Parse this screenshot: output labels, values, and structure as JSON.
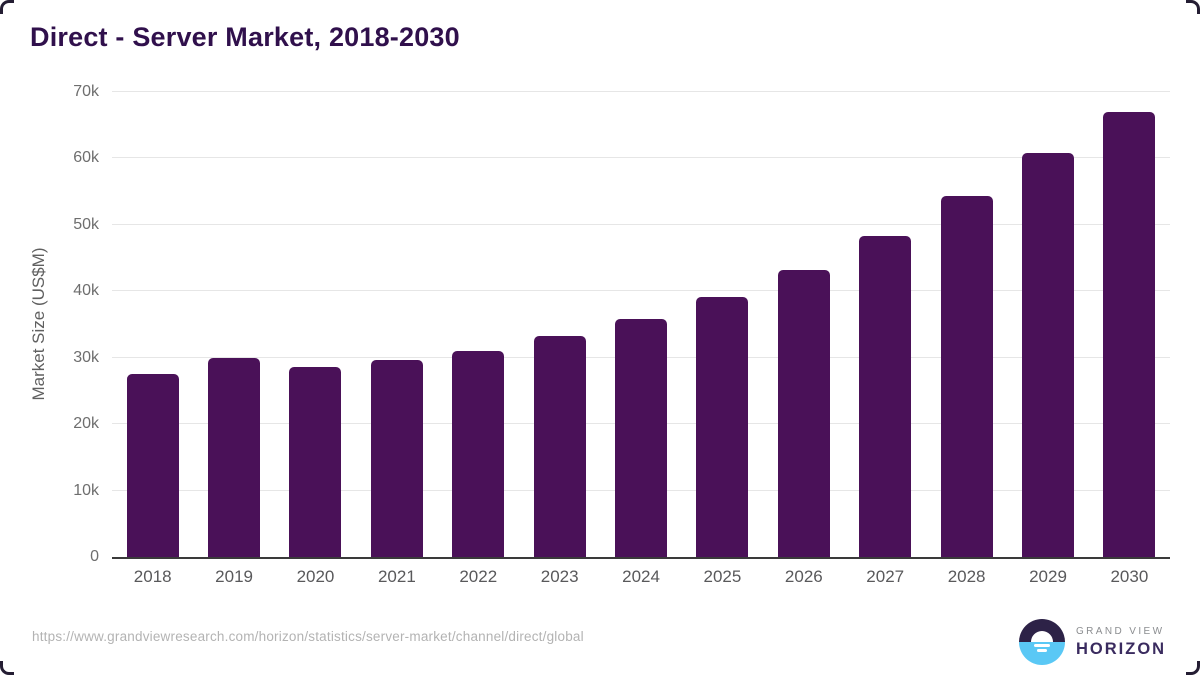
{
  "header": {
    "title": "Direct - Server Market, 2018-2030"
  },
  "chart_data": {
    "type": "bar",
    "title": "Direct - Server Market, 2018-2030",
    "categories": [
      "2018",
      "2019",
      "2020",
      "2021",
      "2022",
      "2023",
      "2024",
      "2025",
      "2026",
      "2027",
      "2028",
      "2029",
      "2030"
    ],
    "values": [
      27600,
      29950,
      28550,
      29600,
      31050,
      33250,
      35800,
      39100,
      43200,
      48400,
      54300,
      60800,
      67000
    ],
    "xlabel": "",
    "ylabel": "Market Size (US$M)",
    "ylim": [
      0,
      70000
    ],
    "yticks": [
      {
        "value": 0,
        "label": "0"
      },
      {
        "value": 10000,
        "label": "10k"
      },
      {
        "value": 20000,
        "label": "20k"
      },
      {
        "value": 30000,
        "label": "30k"
      },
      {
        "value": 40000,
        "label": "40k"
      },
      {
        "value": 50000,
        "label": "50k"
      },
      {
        "value": 60000,
        "label": "60k"
      },
      {
        "value": 70000,
        "label": "70k"
      }
    ],
    "grid": true,
    "legend_position": "none",
    "bar_color": "#4a1158"
  },
  "footer": {
    "source_url": "https://www.grandviewresearch.com/horizon/statistics/server-market/channel/direct/global",
    "logo": {
      "brand_top": "GRAND VIEW",
      "brand_bottom": "HORIZON"
    }
  },
  "colors": {
    "bar": "#4a1158",
    "title_text": "#30104c",
    "axis_tick_text": "#6e6e6e",
    "x_label_text": "#59595b",
    "gridline": "#e6e6e6",
    "baseline": "#3a3a3a",
    "source_text": "#b3b3b3",
    "logo_navy": "#2d2247",
    "logo_blue": "#5ac8f5",
    "logo_gray_text": "#8b8d90",
    "logo_purple_text": "#3a2b5f"
  }
}
